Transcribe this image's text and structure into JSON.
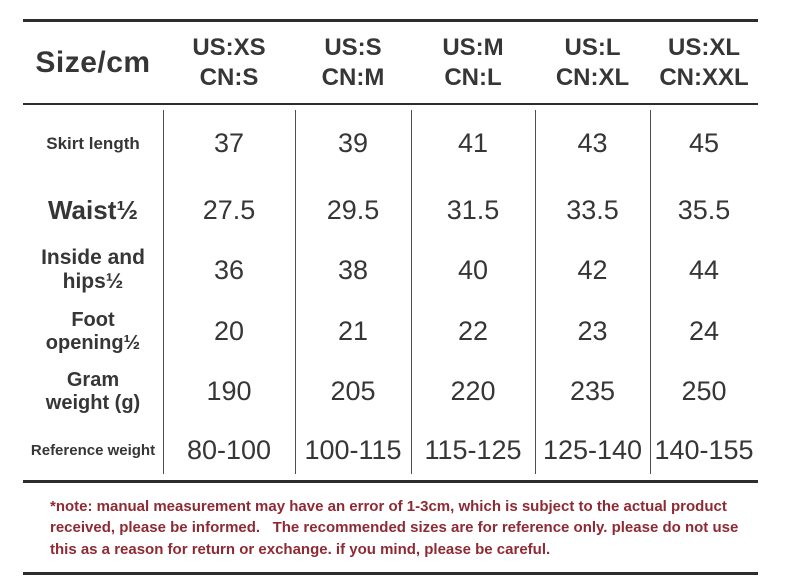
{
  "table": {
    "corner_label": "Size/cm",
    "columns": [
      {
        "label": "US:XS\nCN:S"
      },
      {
        "label": "US:S\nCN:M"
      },
      {
        "label": "US:M\nCN:L"
      },
      {
        "label": "US:L\nCN:XL"
      },
      {
        "label": "US:XL\nCN:XXL"
      }
    ],
    "rows": [
      {
        "label": "Skirt length",
        "values": [
          "37",
          "39",
          "41",
          "43",
          "45"
        ]
      },
      {
        "label": "Waist½",
        "values": [
          "27.5",
          "29.5",
          "31.5",
          "33.5",
          "35.5"
        ]
      },
      {
        "label": "Inside and\nhips½",
        "values": [
          "36",
          "38",
          "40",
          "42",
          "44"
        ]
      },
      {
        "label": "Foot\nopening½",
        "values": [
          "20",
          "21",
          "22",
          "23",
          "24"
        ]
      },
      {
        "label": "Gram\nweight (g)",
        "values": [
          "190",
          "205",
          "220",
          "235",
          "250"
        ]
      },
      {
        "label": "Reference weight",
        "values": [
          "80-100",
          "100-115",
          "115-125",
          "125-140",
          "140-155"
        ]
      }
    ]
  },
  "note": {
    "text": "*note: manual measurement may have an error of 1-3cm, which is subject to the actual product received, please be informed.   The recommended sizes are for reference only. please do not use this as a reason for return or exchange. if you mind, please be careful."
  },
  "colors": {
    "text": "#363636",
    "rule": "#2d2d2d",
    "divider": "#4f4f4f",
    "note": "#8e2a33"
  }
}
